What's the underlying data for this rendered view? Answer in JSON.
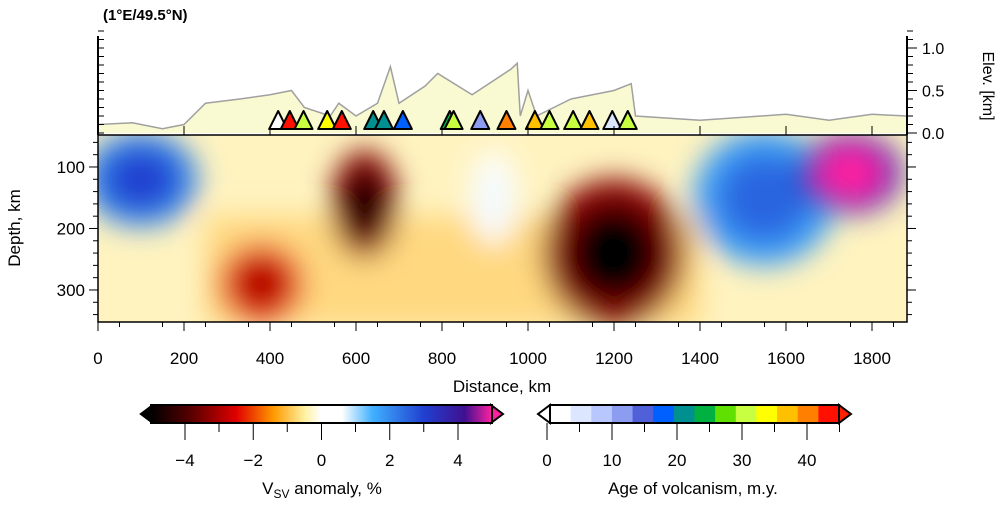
{
  "chart_data": {
    "type": "heatmap",
    "title": "(1°E/49.5°N)",
    "xlabel": "Distance, km",
    "ylabel": "Depth, km",
    "y2label": "Elev. [km]",
    "xlim": [
      0,
      1880
    ],
    "ylim": [
      48,
      352
    ],
    "elev_lim": [
      0,
      1.2
    ],
    "xticks": [
      "0",
      "200",
      "400",
      "600",
      "800",
      "1000",
      "1200",
      "1400",
      "1600",
      "1800"
    ],
    "yticks": [
      "100",
      "200",
      "300"
    ],
    "elev_ticks": [
      "0.0",
      "0.5",
      "1.0"
    ],
    "elevation_profile": [
      [
        0,
        0.1
      ],
      [
        80,
        0.12
      ],
      [
        150,
        0.05
      ],
      [
        200,
        0.1
      ],
      [
        250,
        0.35
      ],
      [
        330,
        0.4
      ],
      [
        400,
        0.45
      ],
      [
        450,
        0.5
      ],
      [
        480,
        0.3
      ],
      [
        540,
        0.2
      ],
      [
        560,
        0.35
      ],
      [
        600,
        0.2
      ],
      [
        650,
        0.35
      ],
      [
        680,
        0.78
      ],
      [
        700,
        0.35
      ],
      [
        760,
        0.55
      ],
      [
        790,
        0.7
      ],
      [
        870,
        0.45
      ],
      [
        900,
        0.55
      ],
      [
        960,
        0.75
      ],
      [
        975,
        0.82
      ],
      [
        982,
        0.2
      ],
      [
        1000,
        0.5
      ],
      [
        1020,
        0.2
      ],
      [
        1100,
        0.4
      ],
      [
        1200,
        0.5
      ],
      [
        1240,
        0.58
      ],
      [
        1250,
        0.2
      ],
      [
        1400,
        0.15
      ],
      [
        1600,
        0.22
      ],
      [
        1700,
        0.15
      ],
      [
        1800,
        0.22
      ],
      [
        1880,
        0.2
      ]
    ],
    "volcanoes": [
      {
        "km": 419,
        "age": 0
      },
      {
        "km": 446,
        "age": 44
      },
      {
        "km": 478,
        "age": 30
      },
      {
        "km": 533,
        "age": 34
      },
      {
        "km": 567,
        "age": 44
      },
      {
        "km": 640,
        "age": 20
      },
      {
        "km": 665,
        "age": 20
      },
      {
        "km": 709,
        "age": 16
      },
      {
        "km": 818,
        "age": 23
      },
      {
        "km": 827,
        "age": 30
      },
      {
        "km": 889,
        "age": 10
      },
      {
        "km": 950,
        "age": 42
      },
      {
        "km": 1016,
        "age": 38
      },
      {
        "km": 1050,
        "age": 30
      },
      {
        "km": 1105,
        "age": 30
      },
      {
        "km": 1143,
        "age": 38
      },
      {
        "km": 1196,
        "age": 3
      },
      {
        "km": 1232,
        "age": 30
      }
    ],
    "anomalies": [
      {
        "km": 620,
        "depth": 160,
        "value": -5,
        "rx": 70,
        "ry": 80
      },
      {
        "km": 1200,
        "depth": 240,
        "value": -5,
        "rx": 150,
        "ry": 110
      },
      {
        "km": 380,
        "depth": 290,
        "value": -3,
        "rx": 90,
        "ry": 60
      },
      {
        "km": 920,
        "depth": 150,
        "value": 0.3,
        "rx": 50,
        "ry": 70
      },
      {
        "km": 100,
        "depth": 120,
        "value": 3,
        "rx": 120,
        "ry": 70
      },
      {
        "km": 1550,
        "depth": 150,
        "value": 2.5,
        "rx": 150,
        "ry": 100
      },
      {
        "km": 1750,
        "depth": 110,
        "value": 5,
        "rx": 110,
        "ry": 60
      }
    ],
    "colorbars": [
      {
        "label": "V",
        "label_sub": "SV",
        "label_rest": " anomaly, %",
        "range": [
          -5,
          5
        ],
        "ticks": [
          "−4",
          "−2",
          "0",
          "2",
          "4"
        ]
      },
      {
        "label": "Age of volcanism, m.y.",
        "range": [
          0,
          46
        ],
        "ticks": [
          "0",
          "10",
          "20",
          "30",
          "40"
        ]
      }
    ]
  }
}
